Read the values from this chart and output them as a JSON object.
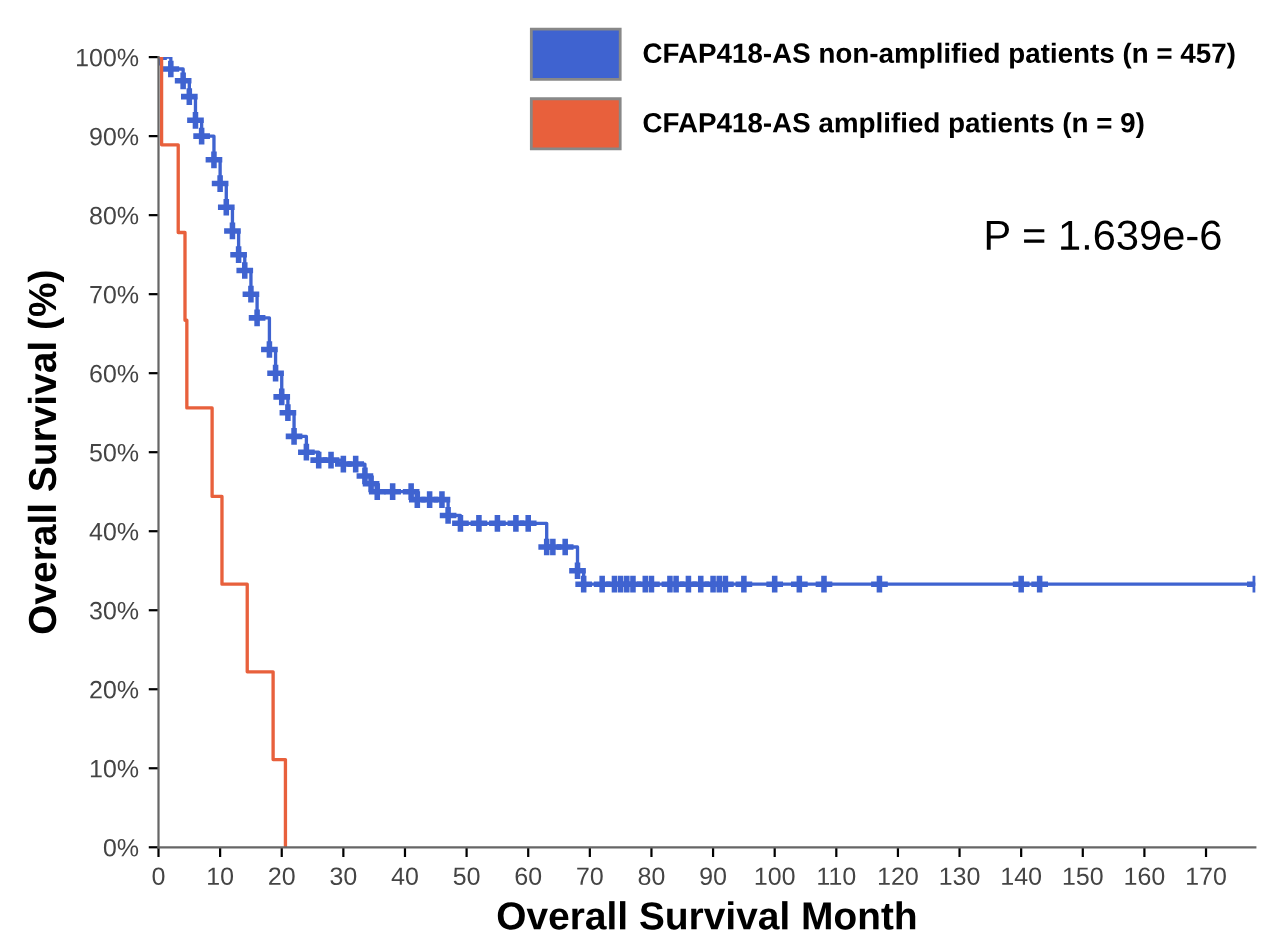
{
  "chart_data": {
    "type": "step",
    "xlabel": "Overall Survival Month",
    "ylabel": "Overall Survival (%)",
    "xlim": [
      0,
      178
    ],
    "ylim": [
      0,
      100
    ],
    "xticks": [
      0,
      10,
      20,
      30,
      40,
      50,
      60,
      70,
      80,
      90,
      100,
      110,
      120,
      130,
      140,
      150,
      160,
      170
    ],
    "yticks": [
      {
        "value": 0,
        "label": "0%"
      },
      {
        "value": 10,
        "label": "10%"
      },
      {
        "value": 20,
        "label": "20%"
      },
      {
        "value": 30,
        "label": "30%"
      },
      {
        "value": 40,
        "label": "40%"
      },
      {
        "value": 50,
        "label": "50%"
      },
      {
        "value": 60,
        "label": "60%"
      },
      {
        "value": 70,
        "label": "70%"
      },
      {
        "value": 80,
        "label": "80%"
      },
      {
        "value": 90,
        "label": "90%"
      },
      {
        "value": 100,
        "label": "100%"
      }
    ],
    "grid": false,
    "legend": "top right",
    "marker": "cross",
    "annotations": [
      "P = 1.639e-6"
    ],
    "series": [
      {
        "name": "CFAP418-AS non-amplified patients (n = 457)",
        "color": "#3f63d0",
        "x": [
          0,
          2,
          4,
          5,
          6,
          7,
          9,
          10,
          11,
          12,
          13,
          14,
          15,
          16,
          18,
          19,
          20,
          21,
          22,
          24,
          26,
          28,
          30,
          32,
          33.5,
          34.5,
          35.5,
          38,
          41,
          42,
          44,
          46,
          47,
          49,
          52,
          55,
          58,
          60,
          63,
          64,
          66,
          68,
          69,
          72,
          74,
          75,
          76,
          77,
          79,
          80,
          83,
          84,
          86,
          88,
          90,
          91,
          92,
          95,
          100,
          104,
          108,
          117,
          140,
          143,
          178
        ],
        "values": [
          100,
          98.5,
          97,
          95,
          92,
          90,
          87,
          84,
          81,
          78,
          75,
          73,
          70,
          67,
          63,
          60,
          57,
          55,
          52,
          50,
          49,
          49,
          48.5,
          48.5,
          47,
          46,
          45,
          45,
          45,
          44,
          44,
          44,
          42,
          41,
          41,
          41,
          41,
          41,
          38,
          38,
          38,
          35,
          33.3,
          33.3,
          33.3,
          33.3,
          33.3,
          33.3,
          33.3,
          33.3,
          33.3,
          33.3,
          33.3,
          33.3,
          33.3,
          33.3,
          33.3,
          33.3,
          33.3,
          33.3,
          33.3,
          33.3,
          33.3,
          33.3,
          33.3
        ]
      },
      {
        "name": "CFAP418-AS amplified patients (n = 9)",
        "color": "#e8603c",
        "marker": "none",
        "x": [
          0,
          0.5,
          3.2,
          4.3,
          4.6,
          8.7,
          10.3,
          14.4,
          18.6,
          20.6
        ],
        "values": [
          100,
          88.9,
          77.8,
          66.7,
          55.6,
          44.4,
          33.3,
          22.2,
          11.1,
          0
        ]
      }
    ]
  }
}
